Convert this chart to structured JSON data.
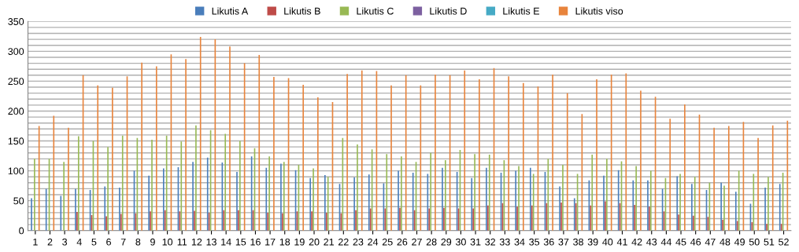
{
  "chart_data": {
    "type": "bar",
    "categories": [
      "1",
      "2",
      "3",
      "4",
      "5",
      "6",
      "7",
      "8",
      "9",
      "10",
      "11",
      "12",
      "13",
      "14",
      "15",
      "16",
      "17",
      "18",
      "19",
      "20",
      "21",
      "22",
      "23",
      "24",
      "25",
      "26",
      "27",
      "28",
      "29",
      "30",
      "31",
      "32",
      "33",
      "34",
      "35",
      "36",
      "37",
      "38",
      "39",
      "40",
      "41",
      "42",
      "43",
      "44",
      "45",
      "46",
      "47",
      "48",
      "49",
      "50",
      "51",
      "52"
    ],
    "series": [
      {
        "name": "Likutis A",
        "color": "#4a7ebb",
        "values": [
          54,
          70,
          58,
          70,
          68,
          74,
          72,
          100,
          92,
          104,
          106,
          115,
          122,
          114,
          98,
          124,
          105,
          112,
          101,
          88,
          93,
          78,
          89,
          94,
          79,
          100,
          97,
          95,
          105,
          98,
          88,
          105,
          97,
          100,
          105,
          98,
          74,
          54,
          84,
          92,
          101,
          84,
          84,
          70,
          91,
          78,
          68,
          80,
          65,
          45,
          72,
          78
        ]
      },
      {
        "name": "Likutis B",
        "color": "#be4b48",
        "values": [
          0,
          0,
          0,
          31,
          26,
          24,
          28,
          29,
          32,
          34,
          32,
          33,
          30,
          34,
          34,
          34,
          30,
          29,
          32,
          32,
          30,
          29,
          34,
          37,
          37,
          38,
          34,
          37,
          38,
          37,
          37,
          42,
          46,
          40,
          42,
          46,
          47,
          46,
          42,
          49,
          46,
          43,
          40,
          32,
          27,
          25,
          23,
          18,
          16,
          14,
          11,
          11
        ]
      },
      {
        "name": "Likutis C",
        "color": "#98b954",
        "values": [
          120,
          120,
          115,
          158,
          150,
          140,
          159,
          155,
          152,
          159,
          149,
          176,
          168,
          162,
          150,
          138,
          124,
          115,
          110,
          104,
          90,
          155,
          144,
          136,
          128,
          124,
          115,
          130,
          118,
          135,
          128,
          127,
          118,
          108,
          95,
          120,
          110,
          95,
          127,
          120,
          116,
          108,
          100,
          88,
          95,
          90,
          80,
          75,
          100,
          95,
          90,
          97
        ]
      },
      {
        "name": "Likutis D",
        "color": "#7d60a0",
        "values": [
          0,
          0,
          0,
          0,
          0,
          0,
          0,
          0,
          0,
          0,
          0,
          0,
          0,
          0,
          0,
          0,
          0,
          0,
          0,
          0,
          0,
          0,
          0,
          0,
          0,
          0,
          0,
          0,
          0,
          0,
          0,
          0,
          0,
          0,
          0,
          0,
          0,
          0,
          0,
          0,
          0,
          0,
          0,
          0,
          0,
          0,
          0,
          0,
          0,
          0,
          0,
          0
        ]
      },
      {
        "name": "Likutis E",
        "color": "#46aac5",
        "values": [
          0,
          0,
          0,
          0,
          0,
          0,
          0,
          0,
          0,
          0,
          0,
          0,
          0,
          0,
          0,
          0,
          0,
          0,
          0,
          0,
          0,
          0,
          0,
          0,
          0,
          0,
          0,
          0,
          0,
          0,
          0,
          0,
          0,
          0,
          0,
          0,
          0,
          0,
          0,
          0,
          0,
          0,
          0,
          0,
          0,
          0,
          0,
          0,
          0,
          0,
          0,
          0
        ]
      },
      {
        "name": "Likutis viso",
        "color": "#e8843c",
        "values": [
          175,
          192,
          172,
          260,
          243,
          239,
          258,
          281,
          275,
          295,
          287,
          324,
          320,
          308,
          280,
          294,
          257,
          255,
          244,
          223,
          215,
          262,
          268,
          267,
          243,
          260,
          243,
          261,
          260,
          268,
          253,
          272,
          258,
          247,
          241,
          261,
          230,
          195,
          253,
          261,
          263,
          234,
          224,
          187,
          211,
          194,
          172,
          175,
          182,
          155,
          176,
          184
        ]
      }
    ],
    "ylim": [
      0,
      350
    ],
    "yticks": [
      0,
      {
        "value": 10,
        "label": null
      },
      {
        "value": 20,
        "label": null
      },
      {
        "value": 30,
        "label": null
      },
      {
        "value": 40,
        "label": null
      },
      50,
      {
        "value": 60,
        "label": null
      },
      {
        "value": 70,
        "label": null
      },
      {
        "value": 80,
        "label": null
      },
      {
        "value": 90,
        "label": null
      },
      100,
      {
        "value": 110,
        "label": null
      },
      {
        "value": 120,
        "label": null
      },
      {
        "value": 130,
        "label": null
      },
      {
        "value": 140,
        "label": null
      },
      150,
      {
        "value": 160,
        "label": null
      },
      {
        "value": 170,
        "label": null
      },
      {
        "value": 180,
        "label": null
      },
      {
        "value": 190,
        "label": null
      },
      200,
      {
        "value": 210,
        "label": null
      },
      {
        "value": 220,
        "label": null
      },
      {
        "value": 230,
        "label": null
      },
      {
        "value": 240,
        "label": null
      },
      250,
      {
        "value": 260,
        "label": null
      },
      {
        "value": 270,
        "label": null
      },
      {
        "value": 280,
        "label": null
      },
      {
        "value": 290,
        "label": null
      },
      300,
      {
        "value": 310,
        "label": null
      },
      {
        "value": 320,
        "label": null
      },
      {
        "value": 330,
        "label": null
      },
      {
        "value": 340,
        "label": null
      },
      350
    ],
    "grid": "y",
    "legend": "top"
  }
}
